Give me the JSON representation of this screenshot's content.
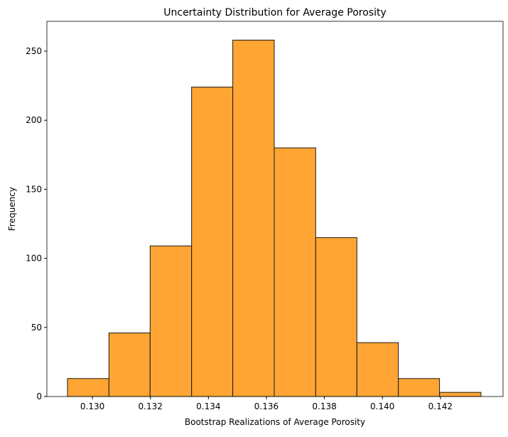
{
  "chart_data": {
    "type": "histogram",
    "title": "Uncertainty Distribution for Average Porosity",
    "x_label": "Bootstrap Realizations of Average Porosity",
    "y_label": "Frequency",
    "bins": [
      0.12914,
      0.13057,
      0.13199,
      0.13342,
      0.13484,
      0.13627,
      0.1377,
      0.13912,
      0.14055,
      0.14197,
      0.1434
    ],
    "values": [
      13,
      46,
      109,
      224,
      258,
      180,
      115,
      39,
      13,
      3
    ],
    "color": "#ffa533",
    "edgecolor": "#1a1a1a",
    "xlim": [
      0.12843,
      0.14416
    ],
    "xticks": [
      {
        "value": 0.13,
        "label": "0.130"
      },
      {
        "value": 0.132,
        "label": "0.132"
      },
      {
        "value": 0.134,
        "label": "0.134"
      },
      {
        "value": 0.136,
        "label": "0.136"
      },
      {
        "value": 0.138,
        "label": "0.138"
      },
      {
        "value": 0.14,
        "label": "0.140"
      },
      {
        "value": 0.142,
        "label": "0.142"
      }
    ],
    "ylim": [
      0,
      271.6
    ],
    "yticks": [
      0,
      50,
      100,
      150,
      200,
      250
    ],
    "grid": false
  }
}
